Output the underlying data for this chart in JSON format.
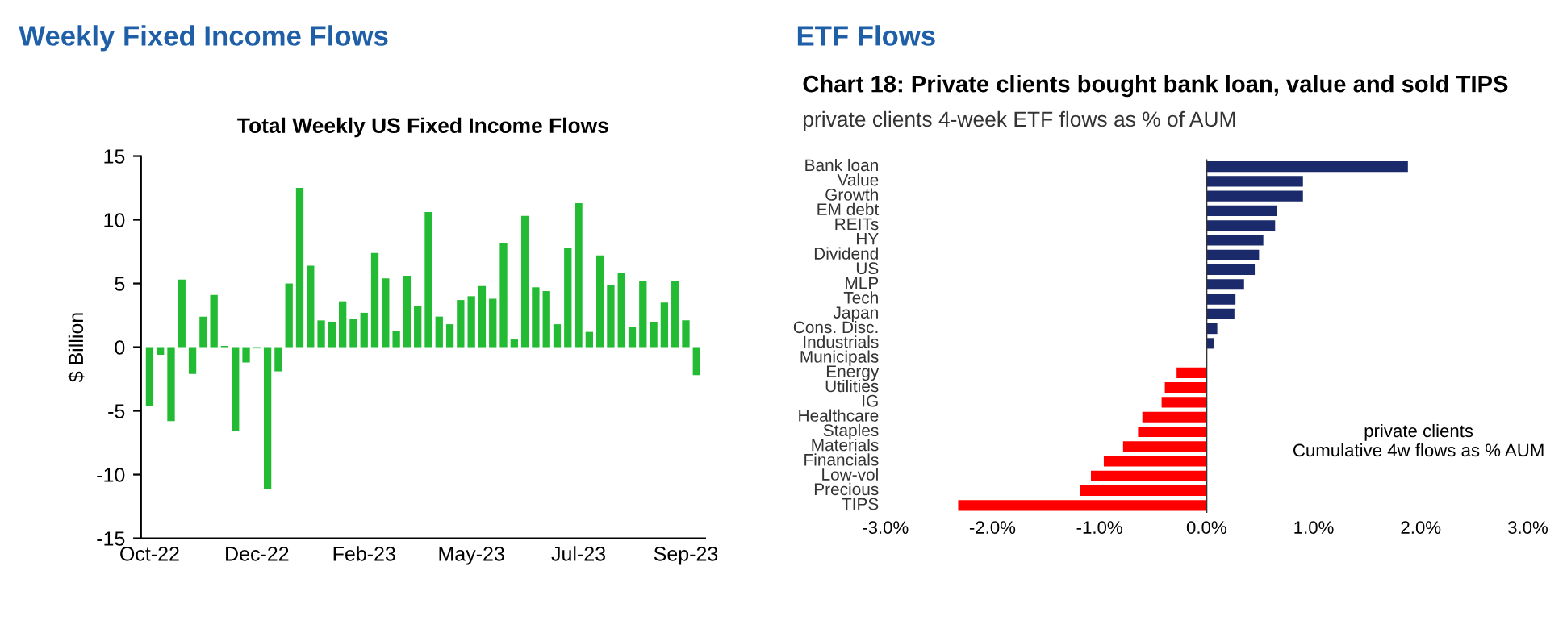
{
  "chart_data": [
    {
      "type": "bar",
      "title": "Weekly Fixed Income Flows",
      "subtitle": "Total Weekly US Fixed Income Flows",
      "ylabel": "$ Billion",
      "categories": [
        "Oct-22",
        null,
        null,
        null,
        null,
        null,
        null,
        null,
        null,
        null,
        "Dec-22",
        null,
        null,
        null,
        null,
        null,
        null,
        null,
        null,
        null,
        "Feb-23",
        null,
        null,
        null,
        null,
        null,
        null,
        null,
        null,
        null,
        "May-23",
        null,
        null,
        null,
        null,
        null,
        null,
        null,
        null,
        null,
        "Jul-23",
        null,
        null,
        null,
        null,
        null,
        null,
        null,
        null,
        null,
        "Sep-23",
        null
      ],
      "values": [
        -4.6,
        -0.6,
        -5.8,
        5.3,
        -2.1,
        2.4,
        4.1,
        0.1,
        -6.6,
        -1.2,
        -0.1,
        -11.1,
        -1.9,
        5.0,
        12.5,
        6.4,
        2.1,
        2.0,
        3.6,
        2.2,
        2.7,
        7.4,
        5.4,
        1.3,
        5.6,
        3.2,
        10.6,
        2.4,
        1.8,
        3.7,
        4.0,
        4.8,
        3.8,
        8.2,
        0.6,
        10.3,
        4.7,
        4.4,
        1.8,
        7.8,
        11.3,
        1.2,
        7.2,
        4.9,
        5.8,
        1.6,
        5.2,
        2.0,
        3.5,
        5.2,
        2.1,
        -2.2
      ],
      "color": "#22bb33",
      "ylim": [
        -15,
        15
      ],
      "yticks": [
        -15,
        -10,
        -5,
        0,
        5,
        10,
        15
      ],
      "grid": false,
      "legend": false
    },
    {
      "type": "bar",
      "orientation": "horizontal",
      "title": "ETF Flows",
      "subtitle": "Chart 18: Private clients bought bank loan, value and sold TIPS",
      "annotations": [
        "private clients 4-week ETF flows as % of AUM",
        "private clients\nCumulative 4w flows as % AUM"
      ],
      "categories": [
        "Bank loan",
        "Value",
        "Growth",
        "EM debt",
        "REITs",
        "HY",
        "Dividend",
        "US",
        "MLP",
        "Tech",
        "Japan",
        "Cons. Disc.",
        "Industrials",
        "Municipals",
        "Energy",
        "Utilities",
        "IG",
        "Healthcare",
        "Staples",
        "Materials",
        "Financials",
        "Low-vol",
        "Precious",
        "TIPS"
      ],
      "values": [
        1.88,
        0.9,
        0.9,
        0.66,
        0.64,
        0.53,
        0.49,
        0.45,
        0.35,
        0.27,
        0.26,
        0.1,
        0.07,
        0.0,
        -0.28,
        -0.39,
        -0.42,
        -0.6,
        -0.64,
        -0.78,
        -0.96,
        -1.08,
        -1.18,
        -2.32
      ],
      "colors": [
        "#1b2a6b",
        "#1b2a6b",
        "#1b2a6b",
        "#1b2a6b",
        "#1b2a6b",
        "#1b2a6b",
        "#1b2a6b",
        "#1b2a6b",
        "#1b2a6b",
        "#1b2a6b",
        "#1b2a6b",
        "#1b2a6b",
        "#1b2a6b",
        "#1b2a6b",
        "#ff0000",
        "#ff0000",
        "#ff0000",
        "#ff0000",
        "#ff0000",
        "#ff0000",
        "#ff0000",
        "#ff0000",
        "#ff0000",
        "#ff0000"
      ],
      "xlim": [
        -3,
        3
      ],
      "xticks": [
        {
          "value": -3,
          "label": "-3.0%"
        },
        {
          "value": -2,
          "label": "-2.0%"
        },
        {
          "value": -1,
          "label": "-1.0%"
        },
        {
          "value": 0,
          "label": "0.0%"
        },
        {
          "value": 1,
          "label": "1.0%"
        },
        {
          "value": 2,
          "label": "2.0%"
        },
        {
          "value": 3,
          "label": "3.0%"
        }
      ],
      "ref_lines": [
        {
          "axis": "x",
          "value": 0,
          "color": "#333333"
        }
      ],
      "grid": false,
      "legend": false
    }
  ]
}
